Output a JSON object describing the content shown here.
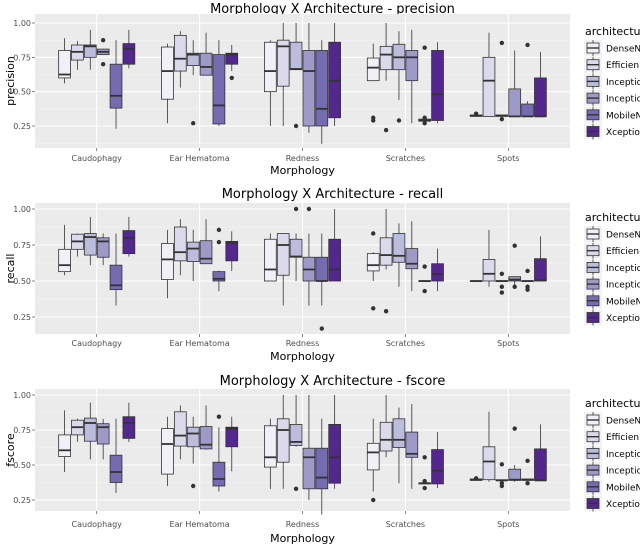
{
  "chart_data": [
    {
      "type": "box",
      "title": "Morphology X Architecture - precision",
      "xlabel": "Morphology",
      "ylabel": "precision",
      "categories": [
        "Caudophagy",
        "Ear Hematoma",
        "Redness",
        "Scratches",
        "Spots"
      ],
      "yticks": [
        "0.25",
        "0.50",
        "0.75",
        "1.00"
      ],
      "ylim": [
        0.12,
        1.04
      ],
      "grid": true,
      "legend": {
        "title": "architectu",
        "placement": "right"
      },
      "box_format": "[lower_whisker, q1, median, q3, upper_whisker, outliers]",
      "series": [
        {
          "name": "DenseN",
          "color": "#f2f0f7",
          "boxes": [
            [
              0.56,
              0.6,
              0.625,
              0.8,
              0.89,
              []
            ],
            [
              0.27,
              0.445,
              0.65,
              0.825,
              0.85,
              []
            ],
            [
              0.25,
              0.5,
              0.65,
              0.86,
              0.875,
              []
            ],
            [
              0.58,
              0.58,
              0.675,
              0.745,
              0.85,
              [
                0.31,
                0.29
              ]
            ],
            [
              0.32,
              0.32,
              0.325,
              0.33,
              0.33,
              [
                0.34
              ]
            ]
          ]
        },
        {
          "name": "Efficien",
          "color": "#dadaeb",
          "boxes": [
            [
              0.66,
              0.73,
              0.79,
              0.84,
              0.87,
              []
            ],
            [
              0.53,
              0.65,
              0.74,
              0.91,
              0.94,
              []
            ],
            [
              0.25,
              0.54,
              0.83,
              0.875,
              1.0,
              []
            ],
            [
              0.58,
              0.66,
              0.77,
              0.83,
              1.0,
              [
                0.22
              ]
            ],
            [
              0.32,
              0.32,
              0.58,
              0.75,
              0.93,
              []
            ]
          ]
        },
        {
          "name": "Inceptio",
          "color": "#bcbddc",
          "boxes": [
            [
              0.66,
              0.75,
              0.83,
              0.84,
              0.95,
              []
            ],
            [
              0.62,
              0.69,
              0.77,
              0.78,
              0.875,
              [
                0.27
              ]
            ],
            [
              0.66,
              0.66,
              0.665,
              0.86,
              1.0,
              [
                0.25
              ]
            ],
            [
              0.44,
              0.66,
              0.75,
              0.845,
              0.94,
              [
                0.29
              ]
            ],
            [
              0.32,
              0.32,
              0.325,
              0.33,
              0.33,
              [
                0.855,
                0.3
              ]
            ]
          ]
        },
        {
          "name": "Inceptio",
          "color": "#9e9ac8",
          "boxes": [
            [
              0.77,
              0.77,
              0.79,
              0.81,
              0.81,
              [
                0.875,
                0.7
              ]
            ],
            [
              0.62,
              0.62,
              0.68,
              0.78,
              0.93,
              []
            ],
            [
              0.2,
              0.25,
              0.65,
              0.8,
              1.0,
              []
            ],
            [
              0.27,
              0.58,
              0.75,
              0.8,
              0.95,
              []
            ],
            [
              0.32,
              0.32,
              0.32,
              0.52,
              0.8,
              []
            ]
          ]
        },
        {
          "name": "MobileN",
          "color": "#756bb1",
          "boxes": [
            [
              0.23,
              0.38,
              0.47,
              0.7,
              0.875,
              []
            ],
            [
              0.25,
              0.265,
              0.4,
              0.77,
              0.875,
              []
            ],
            [
              0.12,
              0.25,
              0.375,
              0.8,
              0.875,
              []
            ],
            [
              0.285,
              0.285,
              0.29,
              0.3,
              0.3,
              [
                0.82,
                0.31,
                0.27
              ]
            ],
            [
              0.32,
              0.32,
              0.32,
              0.41,
              0.43,
              [
                0.84
              ]
            ]
          ]
        },
        {
          "name": "Xceptio",
          "color": "#54278f",
          "boxes": [
            [
              0.67,
              0.7,
              0.81,
              0.85,
              0.95,
              []
            ],
            [
              0.65,
              0.7,
              0.77,
              0.78,
              0.84,
              [
                0.6
              ]
            ],
            [
              0.25,
              0.31,
              0.58,
              0.86,
              1.0,
              []
            ],
            [
              0.27,
              0.29,
              0.48,
              0.8,
              0.86,
              []
            ],
            [
              0.32,
              0.32,
              0.32,
              0.6,
              0.79,
              []
            ]
          ]
        }
      ]
    },
    {
      "type": "box",
      "title": "Morphology X Architecture - recall",
      "xlabel": "Morphology",
      "ylabel": "recall",
      "categories": [
        "Caudophagy",
        "Ear Hematoma",
        "Redness",
        "Scratches",
        "Spots"
      ],
      "yticks": [
        "0.25",
        "0.50",
        "0.75",
        "1.00"
      ],
      "ylim": [
        0.12,
        1.04
      ],
      "grid": true,
      "legend": {
        "title": "architectu",
        "placement": "right"
      },
      "box_format": "[lower_whisker, q1, median, q3, upper_whisker, outliers]",
      "series": [
        {
          "name": "DenseN",
          "color": "#f2f0f7",
          "boxes": [
            [
              0.54,
              0.565,
              0.61,
              0.72,
              0.89,
              []
            ],
            [
              0.38,
              0.51,
              0.65,
              0.76,
              0.855,
              []
            ],
            [
              0.5,
              0.5,
              0.58,
              0.79,
              0.83,
              []
            ],
            [
              0.5,
              0.57,
              0.61,
              0.69,
              0.7,
              [
                0.83,
                0.31
              ]
            ],
            [
              0.5,
              0.5,
              0.5,
              0.5,
              0.5,
              []
            ]
          ]
        },
        {
          "name": "Efficien",
          "color": "#dadaeb",
          "boxes": [
            [
              0.67,
              0.72,
              0.775,
              0.825,
              0.83,
              []
            ],
            [
              0.54,
              0.64,
              0.7,
              0.875,
              0.93,
              []
            ],
            [
              0.33,
              0.54,
              0.75,
              0.83,
              0.83,
              []
            ],
            [
              0.58,
              0.61,
              0.68,
              0.8,
              1.0,
              [
                0.29
              ]
            ],
            [
              0.46,
              0.5,
              0.55,
              0.65,
              0.855,
              []
            ]
          ]
        },
        {
          "name": "Inceptio",
          "color": "#bcbddc",
          "boxes": [
            [
              0.61,
              0.68,
              0.805,
              0.83,
              0.945,
              []
            ],
            [
              0.5,
              0.635,
              0.725,
              0.77,
              0.855,
              []
            ],
            [
              0.5,
              0.665,
              0.67,
              0.79,
              0.83,
              [
                1.0
              ]
            ],
            [
              0.46,
              0.63,
              0.675,
              0.83,
              0.9,
              []
            ],
            [
              0.5,
              0.5,
              0.5,
              0.5,
              0.5,
              [
                0.55,
                0.46,
                0.42
              ]
            ]
          ]
        },
        {
          "name": "Inceptio",
          "color": "#9e9ac8",
          "boxes": [
            [
              0.61,
              0.665,
              0.775,
              0.8,
              0.83,
              []
            ],
            [
              0.62,
              0.62,
              0.655,
              0.78,
              0.93,
              []
            ],
            [
              0.33,
              0.5,
              0.58,
              0.665,
              0.83,
              [
                1.0
              ]
            ],
            [
              0.43,
              0.585,
              0.62,
              0.725,
              0.915,
              []
            ],
            [
              0.46,
              0.5,
              0.51,
              0.53,
              0.53,
              [
                0.745,
                0.46
              ]
            ]
          ]
        },
        {
          "name": "MobileN",
          "color": "#756bb1",
          "boxes": [
            [
              0.33,
              0.44,
              0.47,
              0.61,
              0.83,
              []
            ],
            [
              0.43,
              0.5,
              0.515,
              0.565,
              0.57,
              [
                0.855,
                0.77
              ]
            ],
            [
              0.33,
              0.5,
              0.5,
              0.665,
              0.83,
              [
                0.17
              ]
            ],
            [
              0.5,
              0.5,
              0.5,
              0.5,
              0.5,
              [
                0.6,
                0.43
              ]
            ],
            [
              0.5,
              0.5,
              0.5,
              0.5,
              0.5,
              [
                0.57,
                0.46,
                0.44
              ]
            ]
          ]
        },
        {
          "name": "Xceptio",
          "color": "#54278f",
          "boxes": [
            [
              0.67,
              0.69,
              0.8,
              0.85,
              0.945,
              []
            ],
            [
              0.57,
              0.64,
              0.765,
              0.775,
              0.845,
              []
            ],
            [
              0.5,
              0.5,
              0.58,
              0.79,
              1.0,
              []
            ],
            [
              0.43,
              0.5,
              0.55,
              0.62,
              0.725,
              []
            ],
            [
              0.5,
              0.5,
              0.505,
              0.655,
              0.81,
              []
            ]
          ]
        }
      ]
    },
    {
      "type": "box",
      "title": "Morphology X Architecture - fscore",
      "xlabel": "Morphology",
      "ylabel": "fscore",
      "categories": [
        "Caudophagy",
        "Ear Hematoma",
        "Redness",
        "Scratches",
        "Spots"
      ],
      "yticks": [
        "0.25",
        "0.50",
        "0.75",
        "1.00"
      ],
      "ylim": [
        0.12,
        1.04
      ],
      "grid": true,
      "legend": {
        "title": "architectu",
        "placement": "right"
      },
      "box_format": "[lower_whisker, q1, median, q3, upper_whisker, outliers]",
      "series": [
        {
          "name": "DenseN",
          "color": "#f2f0f7",
          "boxes": [
            [
              0.45,
              0.56,
              0.605,
              0.715,
              0.89,
              []
            ],
            [
              0.35,
              0.435,
              0.65,
              0.76,
              0.845,
              []
            ],
            [
              0.33,
              0.485,
              0.555,
              0.78,
              0.83,
              []
            ],
            [
              0.31,
              0.465,
              0.59,
              0.655,
              0.83,
              [
                0.25
              ]
            ],
            [
              0.39,
              0.39,
              0.395,
              0.4,
              0.4,
              [
                0.405
              ]
            ]
          ]
        },
        {
          "name": "Efficien",
          "color": "#dadaeb",
          "boxes": [
            [
              0.665,
              0.715,
              0.77,
              0.82,
              0.83,
              []
            ],
            [
              0.54,
              0.635,
              0.71,
              0.88,
              0.925,
              []
            ],
            [
              0.33,
              0.52,
              0.75,
              0.83,
              1.0,
              []
            ],
            [
              0.555,
              0.6,
              0.68,
              0.805,
              1.0,
              []
            ],
            [
              0.38,
              0.395,
              0.525,
              0.63,
              0.88,
              []
            ]
          ]
        },
        {
          "name": "Inceptio",
          "color": "#bcbddc",
          "boxes": [
            [
              0.54,
              0.67,
              0.8,
              0.835,
              0.945,
              []
            ],
            [
              0.51,
              0.63,
              0.725,
              0.77,
              0.845,
              [
                0.35
              ]
            ],
            [
              0.63,
              0.64,
              0.665,
              0.79,
              1.0,
              [
                0.33
              ]
            ],
            [
              0.37,
              0.625,
              0.68,
              0.83,
              0.91,
              []
            ],
            [
              0.39,
              0.39,
              0.39,
              0.395,
              0.395,
              [
                0.505,
                0.37,
                0.35
              ]
            ]
          ]
        },
        {
          "name": "Inceptio",
          "color": "#9e9ac8",
          "boxes": [
            [
              0.54,
              0.65,
              0.77,
              0.795,
              0.83,
              []
            ],
            [
              0.61,
              0.615,
              0.645,
              0.775,
              0.925,
              []
            ],
            [
              0.25,
              0.33,
              0.555,
              0.62,
              1.0,
              []
            ],
            [
              0.33,
              0.555,
              0.58,
              0.735,
              0.935,
              []
            ],
            [
              0.38,
              0.39,
              0.395,
              0.47,
              0.5,
              [
                0.76
              ]
            ]
          ]
        },
        {
          "name": "MobileN",
          "color": "#756bb1",
          "boxes": [
            [
              0.3,
              0.375,
              0.45,
              0.57,
              0.83,
              []
            ],
            [
              0.31,
              0.35,
              0.4,
              0.52,
              0.77,
              [
                0.845
              ]
            ],
            [
              0.145,
              0.33,
              0.41,
              0.62,
              0.83,
              []
            ],
            [
              0.365,
              0.365,
              0.37,
              0.37,
              0.37,
              [
                0.555,
                0.385,
                0.335
              ]
            ],
            [
              0.39,
              0.39,
              0.395,
              0.4,
              0.4,
              [
                0.53,
                0.37
              ]
            ]
          ]
        },
        {
          "name": "Xceptio",
          "color": "#54278f",
          "boxes": [
            [
              0.665,
              0.69,
              0.8,
              0.845,
              0.945,
              []
            ],
            [
              0.455,
              0.63,
              0.76,
              0.77,
              0.845,
              []
            ],
            [
              0.33,
              0.37,
              0.555,
              0.79,
              1.0,
              []
            ],
            [
              0.335,
              0.365,
              0.46,
              0.61,
              0.735,
              []
            ],
            [
              0.39,
              0.39,
              0.39,
              0.615,
              0.79,
              []
            ]
          ]
        }
      ]
    }
  ]
}
